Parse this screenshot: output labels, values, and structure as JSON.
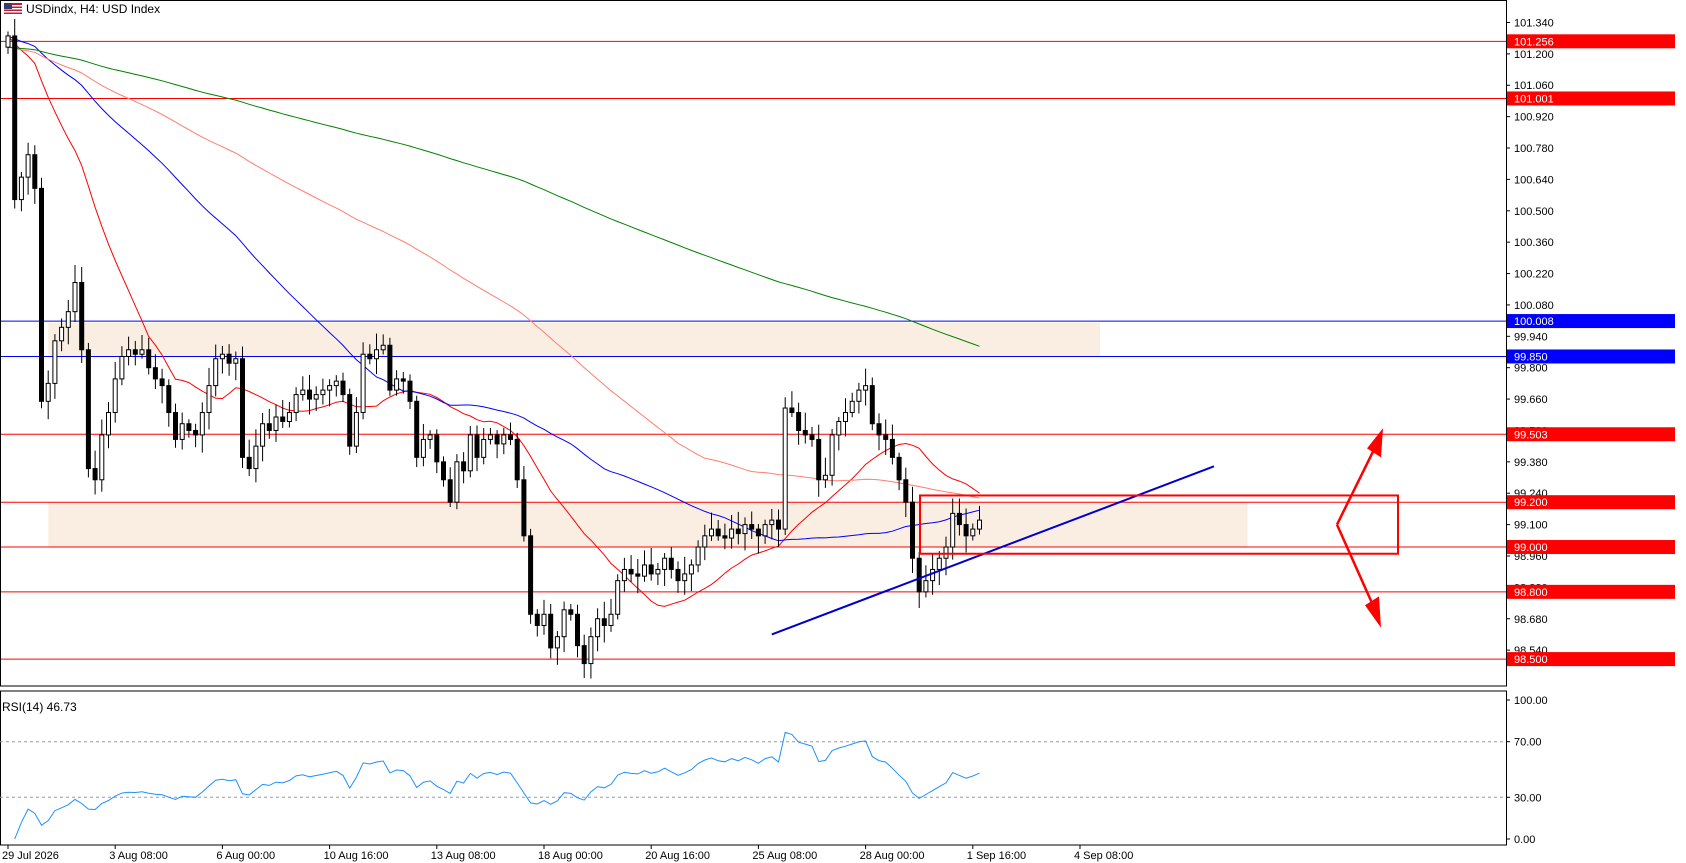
{
  "header": {
    "symbol": "USDindx, H4:",
    "description": "USD Index",
    "flag_icon": "usd-flag-icon"
  },
  "rsi_header": {
    "label": "RSI(14) 46.73"
  },
  "colors": {
    "candle_bull_fill": "#ffffff",
    "candle_bear_fill": "#000000",
    "ma_fast": "#ff0000",
    "ma_mid": "#0000ff",
    "ma_slow_red": "#ff7f6f",
    "ma_long": "#008000",
    "support_line": "#ff0000",
    "resistance_blue": "#0000ff",
    "zone_fill": "#faeee2",
    "rsi_line": "#1e90ff",
    "trendline": "#0000cc",
    "box": "#ff0000"
  },
  "chart_data": {
    "type": "candlestick",
    "price_axis": {
      "ticks": [
        "101.340",
        "101.200",
        "101.060",
        "100.920",
        "100.780",
        "100.640",
        "100.500",
        "100.360",
        "100.220",
        "100.080",
        "99.940",
        "99.800",
        "99.660",
        "99.520",
        "99.380",
        "99.240",
        "99.100",
        "98.960",
        "98.820",
        "98.680",
        "98.540"
      ],
      "ylim": [
        98.38,
        101.36
      ]
    },
    "time_axis": {
      "labels": [
        "29 Jul 2026",
        "3 Aug 08:00",
        "6 Aug 00:00",
        "10 Aug 16:00",
        "13 Aug 08:00",
        "18 Aug 00:00",
        "20 Aug 16:00",
        "25 Aug 08:00",
        "28 Aug 00:00",
        "1 Sep 16:00",
        "4 Sep 08:00"
      ],
      "label_index": [
        0,
        16,
        32,
        48,
        64,
        80,
        96,
        112,
        128,
        144,
        160
      ]
    },
    "horizontal_levels": [
      {
        "value": 101.256,
        "label": "101.256",
        "color": "#ff0000"
      },
      {
        "value": 101.001,
        "label": "101.001",
        "color": "#ff0000"
      },
      {
        "value": 100.008,
        "label": "100.008",
        "color": "#0000ff"
      },
      {
        "value": 99.85,
        "label": "99.850",
        "color": "#0000ff"
      },
      {
        "value": 99.503,
        "label": "99.503",
        "color": "#ff0000"
      },
      {
        "value": 99.2,
        "label": "99.200",
        "color": "#ff0000"
      },
      {
        "value": 99.0,
        "label": "99.000",
        "color": "#ff0000"
      },
      {
        "value": 98.8,
        "label": "98.800",
        "color": "#ff0000"
      },
      {
        "value": 98.5,
        "label": "98.500",
        "color": "#ff0000"
      }
    ],
    "zones": [
      {
        "from_index": 6,
        "to_index": 163,
        "low": 99.85,
        "high": 100.0
      },
      {
        "from_index": 6,
        "to_index": 185,
        "low": 99.0,
        "high": 99.2
      }
    ],
    "close": [
      101.28,
      100.55,
      100.65,
      100.75,
      100.6,
      99.65,
      99.73,
      99.92,
      99.98,
      100.05,
      100.18,
      99.88,
      99.35,
      99.3,
      99.5,
      99.6,
      99.75,
      99.85,
      99.88,
      99.86,
      99.88,
      99.8,
      99.75,
      99.72,
      99.6,
      99.48,
      99.55,
      99.52,
      99.5,
      99.6,
      99.72,
      99.84,
      99.86,
      99.82,
      99.84,
      99.4,
      99.35,
      99.45,
      99.55,
      99.52,
      99.58,
      99.56,
      99.6,
      99.68,
      99.7,
      99.66,
      99.68,
      99.7,
      99.72,
      99.74,
      99.68,
      99.45,
      99.6,
      99.86,
      99.84,
      99.88,
      99.9,
      99.7,
      99.75,
      99.74,
      99.65,
      99.4,
      99.48,
      99.5,
      99.38,
      99.3,
      99.2,
      99.38,
      99.34,
      99.5,
      99.4,
      99.48,
      99.5,
      99.46,
      99.5,
      99.48,
      99.3,
      99.05,
      98.7,
      98.65,
      98.7,
      98.55,
      98.6,
      98.72,
      98.7,
      98.56,
      98.48,
      98.6,
      98.68,
      98.65,
      98.7,
      98.85,
      98.9,
      98.88,
      98.87,
      98.92,
      98.88,
      98.9,
      98.95,
      98.9,
      98.85,
      98.88,
      98.92,
      99.0,
      99.05,
      99.08,
      99.05,
      99.04,
      99.08,
      99.06,
      99.1,
      99.08,
      99.05,
      99.1,
      99.12,
      99.08,
      99.62,
      99.6,
      99.52,
      99.5,
      99.48,
      99.3,
      99.32,
      99.5,
      99.56,
      99.6,
      99.65,
      99.7,
      99.72,
      99.55,
      99.5,
      99.48,
      99.4,
      99.3,
      99.2,
      98.95,
      98.8,
      98.85,
      98.9,
      98.95,
      99.0,
      99.15,
      99.1,
      99.05,
      99.08,
      99.12
    ],
    "ma": [
      {
        "name": "",
        "period": 21,
        "color": "#ff0000"
      },
      {
        "name": "",
        "period": 55,
        "color": "#0000ff"
      },
      {
        "name": "",
        "period": 100,
        "color": "#ff7f6f"
      },
      {
        "name": "",
        "period": 200,
        "color": "#008000"
      }
    ],
    "trendline": {
      "from": [
        130,
        98.61
      ],
      "to": [
        196,
        99.36
      ]
    },
    "box": {
      "from_index": 146,
      "to_index": 222,
      "low": 98.97,
      "high": 99.23
    },
    "rsi": {
      "period": 14,
      "value": 46.73,
      "ticks": [
        "100.00",
        "70.00",
        "30.00",
        "0.00"
      ],
      "levels": [
        70,
        30
      ],
      "ylim": [
        0,
        100
      ]
    }
  }
}
